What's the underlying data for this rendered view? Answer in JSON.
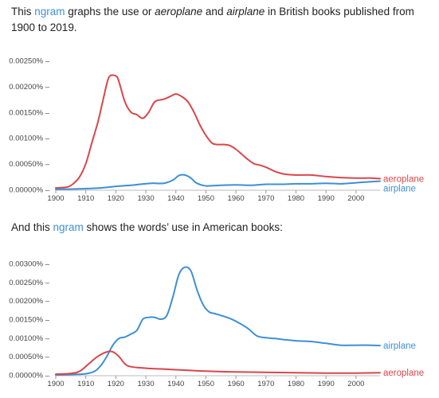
{
  "intro1": {
    "before": "This ",
    "link": "ngram",
    "mid1": " graphs the use or ",
    "word1": "aeroplane",
    "mid2": " and ",
    "word2": "airplane",
    "after": " in British books published from 1900 to 2019."
  },
  "intro2": {
    "before": "And this ",
    "link": "ngram",
    "after": " shows the words’ use in American books:"
  },
  "colors": {
    "aeroplane": "#d9464b",
    "airplane": "#3d8fd6",
    "link": "#3d8fd6"
  },
  "chart_data": [
    {
      "type": "line",
      "xlim": [
        1900,
        2008
      ],
      "ylim": [
        0,
        0.0025
      ],
      "x_ticks": [
        "1900",
        "1910",
        "1920",
        "1930",
        "1940",
        "1950",
        "1960",
        "1970",
        "1980",
        "1990",
        "2000"
      ],
      "y_ticks": [
        "0.00000%",
        "0.00050%",
        "0.00100%",
        "0.00150%",
        "0.00200%",
        "0.00250%"
      ],
      "y_tick_values": [
        0,
        0.0005,
        0.001,
        0.0015,
        0.002,
        0.0025
      ],
      "series": [
        {
          "name": "aeroplane",
          "color": "#d9464b",
          "x": [
            1900,
            1904,
            1906,
            1908,
            1910,
            1912,
            1914,
            1916,
            1917,
            1918,
            1920,
            1921,
            1923,
            1925,
            1927,
            1929,
            1931,
            1933,
            1936,
            1938,
            1940,
            1942,
            1944,
            1946,
            1948,
            1950,
            1952,
            1954,
            1956,
            1958,
            1960,
            1962,
            1964,
            1966,
            1968,
            1970,
            1973,
            1976,
            1980,
            1985,
            1990,
            1995,
            2000,
            2005,
            2008
          ],
          "y": [
            3e-05,
            5e-05,
            0.00012,
            0.00025,
            0.0005,
            0.0009,
            0.0013,
            0.0018,
            0.00205,
            0.0022,
            0.0022,
            0.0021,
            0.0017,
            0.0015,
            0.00145,
            0.00138,
            0.0015,
            0.0017,
            0.00175,
            0.0018,
            0.00185,
            0.0018,
            0.0017,
            0.0015,
            0.00125,
            0.00105,
            0.0009,
            0.00087,
            0.00087,
            0.00085,
            0.00078,
            0.00068,
            0.00058,
            0.0005,
            0.00047,
            0.00043,
            0.00035,
            0.0003,
            0.00028,
            0.00028,
            0.00025,
            0.00023,
            0.00022,
            0.00022,
            0.00021
          ]
        },
        {
          "name": "airplane",
          "color": "#3d8fd6",
          "x": [
            1900,
            1905,
            1910,
            1915,
            1920,
            1925,
            1928,
            1932,
            1936,
            1939,
            1941,
            1943,
            1945,
            1947,
            1950,
            1955,
            1960,
            1965,
            1970,
            1975,
            1980,
            1985,
            1990,
            1995,
            2000,
            2005,
            2008
          ],
          "y": [
            5e-06,
            8e-06,
            1.5e-05,
            3e-05,
            6e-05,
            8e-05,
            0.0001,
            0.00012,
            0.00012,
            0.00018,
            0.00027,
            0.00028,
            0.00022,
            0.00012,
            7e-05,
            8e-05,
            9e-05,
            8e-05,
            0.0001,
            0.0001,
            0.00011,
            0.00011,
            0.00012,
            0.00011,
            0.00013,
            0.00015,
            0.00016
          ]
        }
      ]
    },
    {
      "type": "line",
      "xlim": [
        1900,
        2008
      ],
      "ylim": [
        0,
        0.003
      ],
      "x_ticks": [
        "1900",
        "1910",
        "1920",
        "1930",
        "1940",
        "1950",
        "1960",
        "1970",
        "1980",
        "1990",
        "2000"
      ],
      "y_ticks": [
        "0.00000%",
        "0.00050%",
        "0.00100%",
        "0.00150%",
        "0.00200%",
        "0.00250%",
        "0.00300%"
      ],
      "y_tick_values": [
        0,
        0.0005,
        0.001,
        0.0015,
        0.002,
        0.0025,
        0.003
      ],
      "series": [
        {
          "name": "airplane",
          "color": "#3d8fd6",
          "x": [
            1900,
            1905,
            1910,
            1913,
            1915,
            1917,
            1919,
            1921,
            1923,
            1925,
            1927,
            1929,
            1931,
            1933,
            1935,
            1937,
            1939,
            1941,
            1943,
            1945,
            1947,
            1949,
            1951,
            1953,
            1955,
            1958,
            1961,
            1964,
            1967,
            1970,
            1973,
            1976,
            1980,
            1985,
            1990,
            1995,
            2000,
            2005,
            2008
          ],
          "y": [
            0,
            1e-05,
            3e-05,
            0.0001,
            0.00025,
            0.0005,
            0.0008,
            0.00098,
            0.00102,
            0.0011,
            0.0012,
            0.0015,
            0.00155,
            0.00155,
            0.0015,
            0.0016,
            0.0021,
            0.0027,
            0.0029,
            0.0028,
            0.0023,
            0.0019,
            0.0017,
            0.00165,
            0.0016,
            0.00152,
            0.0014,
            0.00125,
            0.00105,
            0.001,
            0.00098,
            0.00095,
            0.00092,
            0.0009,
            0.00085,
            0.0008,
            0.0008,
            0.0008,
            0.00079
          ]
        },
        {
          "name": "aeroplane",
          "color": "#d9464b",
          "x": [
            1900,
            1905,
            1908,
            1911,
            1914,
            1917,
            1919,
            1921,
            1923,
            1925,
            1930,
            1935,
            1940,
            1945,
            1950,
            1960,
            1970,
            1980,
            1990,
            2000,
            2008
          ],
          "y": [
            2e-05,
            4e-05,
            0.0001,
            0.0003,
            0.0005,
            0.00062,
            0.00062,
            0.0005,
            0.0003,
            0.00022,
            0.00018,
            0.00016,
            0.00014,
            0.00012,
            0.0001,
            8e-05,
            7e-05,
            6e-05,
            5e-05,
            5e-05,
            6e-05
          ]
        }
      ]
    }
  ]
}
